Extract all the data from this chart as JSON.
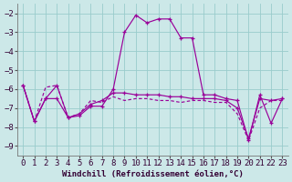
{
  "xlabel": "Windchill (Refroidissement éolien,°C)",
  "background_color": "#cce8e8",
  "grid_color": "#99cccc",
  "line_color": "#990099",
  "xlim": [
    -0.5,
    23.5
  ],
  "ylim": [
    -9.5,
    -1.5
  ],
  "yticks": [
    -9,
    -8,
    -7,
    -6,
    -5,
    -4,
    -3,
    -2
  ],
  "xticks": [
    0,
    1,
    2,
    3,
    4,
    5,
    6,
    7,
    8,
    9,
    10,
    11,
    12,
    13,
    14,
    15,
    16,
    17,
    18,
    19,
    20,
    21,
    22,
    23
  ],
  "curve1_x": [
    0,
    1,
    2,
    3,
    4,
    5,
    6,
    7,
    8,
    9,
    10,
    11,
    12,
    13,
    14,
    15,
    16,
    17,
    18,
    19,
    20,
    21,
    22,
    23
  ],
  "curve1_y": [
    -5.8,
    -7.7,
    -6.5,
    -5.8,
    -7.5,
    -7.4,
    -6.9,
    -6.9,
    -6.0,
    -3.0,
    -2.1,
    -2.5,
    -2.3,
    -2.3,
    -3.3,
    -3.3,
    -6.3,
    -6.3,
    -6.5,
    -6.6,
    -8.7,
    -6.3,
    -7.8,
    -6.5
  ],
  "curve2_x": [
    0,
    1,
    2,
    3,
    4,
    5,
    6,
    7,
    8,
    9,
    10,
    11,
    12,
    13,
    14,
    15,
    16,
    17,
    18,
    19,
    20,
    21,
    22,
    23
  ],
  "curve2_y": [
    -5.8,
    -7.7,
    -6.5,
    -6.5,
    -7.5,
    -7.3,
    -6.8,
    -6.6,
    -6.2,
    -6.2,
    -6.3,
    -6.3,
    -6.3,
    -6.4,
    -6.4,
    -6.5,
    -6.5,
    -6.5,
    -6.6,
    -7.0,
    -8.6,
    -6.5,
    -6.6,
    -6.5
  ],
  "curve3_x": [
    0,
    1,
    2,
    3,
    4,
    5,
    6,
    7,
    8,
    9,
    10,
    11,
    12,
    13,
    14,
    15,
    16,
    17,
    18,
    19,
    20,
    21,
    22,
    23
  ],
  "curve3_y": [
    -5.8,
    -7.7,
    -5.9,
    -5.8,
    -7.5,
    -7.3,
    -6.6,
    -6.7,
    -6.4,
    -6.6,
    -6.5,
    -6.5,
    -6.6,
    -6.6,
    -6.7,
    -6.6,
    -6.6,
    -6.7,
    -6.7,
    -7.3,
    -8.7,
    -7.0,
    -6.6,
    -6.6
  ],
  "marker_size": 3.0,
  "linewidth": 0.85,
  "xlabel_fontsize": 6.5,
  "tick_fontsize": 6.5
}
